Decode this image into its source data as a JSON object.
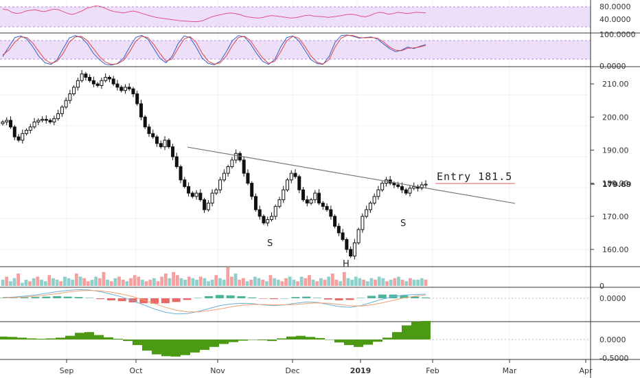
{
  "chart_data": {
    "type": "candlestick",
    "price_axis": {
      "ticks": [
        "210.00",
        "200.00",
        "190.00",
        "180.00",
        "170.00",
        "160.00"
      ],
      "ylim": [
        155,
        215
      ],
      "last_price": "179.69"
    },
    "time_axis": {
      "labels": [
        "Sep",
        "Oct",
        "Nov",
        "Dec",
        "2019",
        "Feb",
        "Mar",
        "Apr"
      ]
    },
    "annotations": {
      "entry": "Entry 181.5",
      "left_shoulder": "S",
      "head": "H",
      "right_shoulder": "S"
    },
    "trendline": {
      "from_price": 190.9,
      "to_price": 173.9
    },
    "closes": [
      198.5,
      199,
      197,
      194,
      193,
      195,
      196,
      197,
      198.5,
      199,
      199.3,
      199,
      198.5,
      199.5,
      201,
      203,
      205,
      207,
      209,
      211,
      213,
      212,
      211,
      210,
      209.5,
      211,
      212,
      211.5,
      210,
      209,
      208,
      209,
      208.5,
      207,
      204,
      200,
      197,
      195,
      194,
      192,
      191,
      193,
      191,
      188,
      185,
      181,
      179,
      177,
      176,
      177,
      175,
      172,
      174,
      177,
      178,
      181,
      183,
      185,
      187,
      189,
      187,
      183,
      180,
      176,
      172,
      170,
      168,
      169,
      170,
      173,
      175,
      178,
      181,
      183,
      182,
      178,
      175,
      174,
      175,
      177,
      174,
      173,
      172,
      170,
      167,
      165,
      163,
      160,
      158,
      162,
      166,
      170,
      172,
      174,
      176,
      178,
      180,
      181,
      180,
      179.5,
      179,
      178,
      177,
      178.5,
      179,
      178.5,
      179.5,
      179.7
    ],
    "rsi": {
      "ticks": [
        "80.0000",
        "40.0000"
      ],
      "values": [
        72,
        70,
        62,
        58,
        60,
        66,
        68,
        70,
        66,
        64,
        68,
        72,
        70,
        64,
        58,
        55,
        60,
        66,
        74,
        78,
        82,
        80,
        75,
        68,
        64,
        62,
        60,
        63,
        66,
        63,
        58,
        54,
        50,
        46,
        44,
        42,
        40,
        38,
        36,
        35,
        34,
        33,
        33,
        36,
        42,
        48,
        52,
        55,
        58,
        60,
        58,
        55,
        50,
        47,
        45,
        44,
        46,
        50,
        52,
        50,
        48,
        46,
        44,
        45,
        48,
        52,
        53,
        50,
        49,
        48,
        46,
        48,
        50,
        52,
        55,
        56,
        54,
        50,
        48,
        52,
        58,
        62,
        60,
        56,
        58,
        62,
        60,
        58,
        60,
        62,
        61,
        60
      ]
    },
    "stochastic": {
      "ticks": [
        "100.0000",
        "0.0000"
      ],
      "k": [
        30,
        60,
        90,
        95,
        85,
        60,
        30,
        10,
        5,
        20,
        55,
        88,
        96,
        90,
        70,
        40,
        20,
        5,
        3,
        8,
        25,
        60,
        90,
        97,
        85,
        55,
        25,
        10,
        30,
        70,
        95,
        90,
        60,
        25,
        8,
        4,
        15,
        45,
        80,
        96,
        92,
        70,
        40,
        15,
        5,
        20,
        60,
        90,
        95,
        80,
        50,
        20,
        8,
        5,
        30,
        75,
        96,
        98,
        94,
        88,
        90,
        92,
        85,
        70,
        55,
        45,
        50,
        60,
        55,
        62,
        68
      ],
      "d": [
        35,
        50,
        75,
        92,
        90,
        72,
        45,
        20,
        8,
        15,
        40,
        75,
        92,
        94,
        80,
        55,
        30,
        12,
        5,
        7,
        18,
        45,
        78,
        94,
        90,
        68,
        40,
        15,
        22,
        55,
        85,
        93,
        75,
        40,
        15,
        6,
        10,
        32,
        65,
        90,
        94,
        80,
        52,
        25,
        8,
        15,
        45,
        80,
        94,
        88,
        62,
        32,
        12,
        6,
        20,
        60,
        88,
        97,
        96,
        90,
        89,
        90,
        88,
        76,
        60,
        50,
        48,
        56,
        57,
        60,
        65
      ]
    },
    "volume": {
      "ticks": [
        "0"
      ],
      "values": [
        4,
        6,
        3,
        5,
        8,
        2,
        4,
        3,
        5,
        6,
        4,
        3,
        7,
        5,
        4,
        3,
        6,
        5,
        4,
        8,
        6,
        5,
        3,
        4,
        6,
        5,
        9,
        4,
        3,
        5,
        6,
        4,
        3,
        5,
        7,
        6,
        4,
        3,
        4,
        5,
        3,
        6,
        8,
        5,
        9,
        7,
        5,
        4,
        6,
        5,
        4,
        6,
        5,
        3,
        4,
        7,
        5,
        4,
        12,
        6,
        8,
        4,
        5,
        3,
        4,
        6,
        5,
        4,
        3,
        7,
        5,
        4,
        3,
        5,
        6,
        4,
        3,
        6,
        5,
        7,
        4,
        3,
        5,
        4,
        6,
        8,
        4,
        3,
        9,
        5,
        4,
        6,
        5,
        4,
        3,
        5,
        4,
        6,
        5,
        3,
        4,
        5,
        6,
        4,
        3,
        5,
        4,
        4,
        5,
        4
      ],
      "up": [
        1,
        0,
        1,
        1,
        0,
        1,
        1,
        0,
        1,
        0,
        1,
        1,
        0,
        1,
        1,
        0,
        1,
        1,
        1,
        0,
        1,
        0,
        0,
        1,
        1,
        0,
        0,
        1,
        0,
        1,
        0,
        0,
        1,
        0,
        0,
        0,
        1,
        0,
        0,
        1,
        0,
        0,
        0,
        1,
        0,
        0,
        1,
        1,
        0,
        1,
        1,
        0,
        1,
        1,
        1,
        0,
        1,
        1,
        0,
        0,
        1,
        0,
        0,
        1,
        0,
        1,
        1,
        0,
        1,
        0,
        1,
        1,
        0,
        0,
        1,
        1,
        0,
        1,
        0,
        0,
        1,
        0,
        1,
        0,
        1,
        0,
        0,
        1,
        0,
        1,
        1,
        1,
        1,
        0,
        1,
        1,
        0,
        1,
        1,
        0,
        1,
        0,
        1,
        0,
        1,
        0,
        1,
        1,
        1,
        0
      ]
    },
    "macd": {
      "ticks": [
        "0.0000"
      ],
      "macd": [
        0.2,
        0.3,
        0.5,
        0.8,
        1.2,
        1.6,
        1.9,
        2.1,
        2.0,
        1.6,
        1.0,
        0.3,
        -0.6,
        -1.6,
        -2.6,
        -3.4,
        -3.8,
        -3.7,
        -3.2,
        -2.5,
        -1.8,
        -1.4,
        -1.2,
        -1.3,
        -1.6,
        -1.8,
        -1.6,
        -1.2,
        -0.9,
        -1.0,
        -1.5,
        -2.0,
        -2.2,
        -1.8,
        -1.0,
        -0.2,
        0.4,
        0.8,
        0.9,
        1.0
      ],
      "signal": [
        0.1,
        0.2,
        0.3,
        0.5,
        0.8,
        1.1,
        1.5,
        1.8,
        1.9,
        1.8,
        1.5,
        1.0,
        0.4,
        -0.4,
        -1.3,
        -2.2,
        -2.9,
        -3.3,
        -3.3,
        -3.0,
        -2.6,
        -2.1,
        -1.7,
        -1.5,
        -1.5,
        -1.6,
        -1.6,
        -1.5,
        -1.3,
        -1.1,
        -1.2,
        -1.5,
        -1.8,
        -1.9,
        -1.6,
        -1.1,
        -0.5,
        0.1,
        0.5,
        0.8
      ]
    },
    "oscillator": {
      "ticks": [
        "0.0000",
        "-0.5000"
      ],
      "values": [
        0.08,
        0.07,
        0.05,
        0.03,
        0.02,
        0.03,
        0.05,
        0.1,
        0.18,
        0.2,
        0.12,
        0.06,
        0.02,
        -0.04,
        -0.15,
        -0.3,
        -0.4,
        -0.45,
        -0.46,
        -0.42,
        -0.35,
        -0.28,
        -0.2,
        -0.12,
        -0.07,
        -0.03,
        -0.01,
        -0.02,
        -0.04,
        0.03,
        0.08,
        0.1,
        0.07,
        0.04,
        0.0,
        -0.08,
        -0.15,
        -0.2,
        -0.14,
        -0.06,
        0.05,
        0.2,
        0.38,
        0.48,
        0.5
      ]
    }
  }
}
